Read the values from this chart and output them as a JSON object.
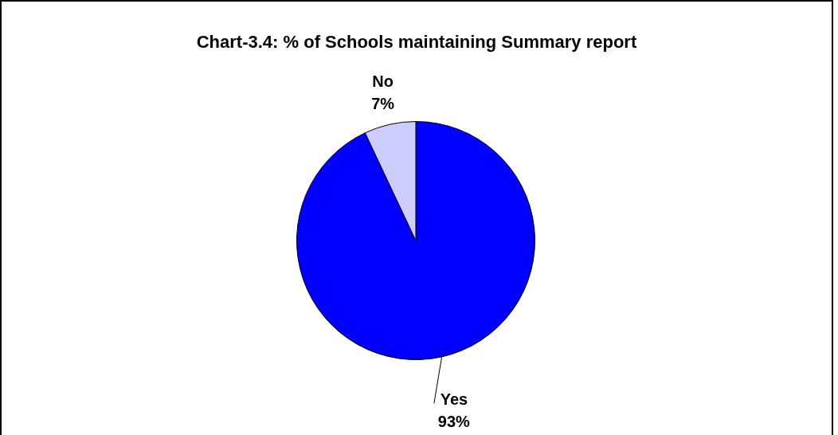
{
  "chart_data": {
    "type": "pie",
    "title": "Chart-3.4: % of Schools maintaining Summary report",
    "categories": [
      "Yes",
      "No"
    ],
    "values": [
      93,
      7
    ],
    "colors": [
      "#0000ff",
      "#ccccff"
    ],
    "value_labels": [
      "93%",
      "7%"
    ],
    "legend": false
  }
}
